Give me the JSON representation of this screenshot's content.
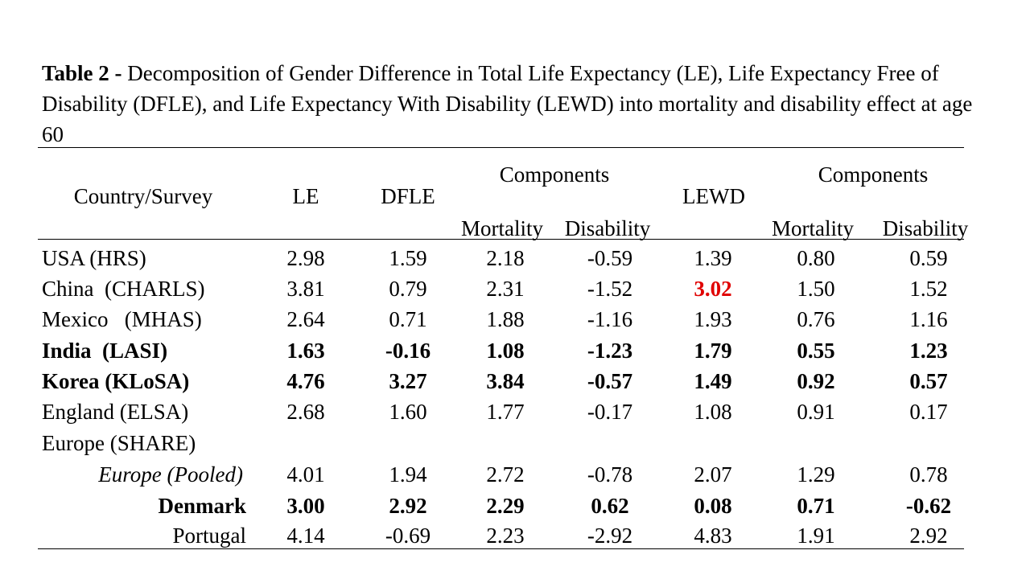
{
  "caption_prefix": "Table 2",
  "caption_dash": " - ",
  "caption_body": "Decomposition of Gender Difference in Total Life Expectancy (LE), Life Expectancy Free of Disability (DFLE), and Life Expectancy With Disability (LEWD) into mortality and disability effect at age 60",
  "headers": {
    "country": "Country/Survey",
    "le": "LE",
    "dfle": "DFLE",
    "components1": "Components",
    "lewd": "LEWD",
    "components2": "Components",
    "mortality1": "Mortality",
    "disability1": "Disability",
    "mortality2": "Mortality",
    "disability2": "Disability"
  },
  "rows": [
    {
      "label": "USA (HRS)",
      "le": "2.98",
      "dfle": "1.59",
      "m1": "2.18",
      "d1": "-0.59",
      "lewd": "1.39",
      "m2": "0.80",
      "d2": "0.59"
    },
    {
      "label": "China  (CHARLS)",
      "le": "3.81",
      "dfle": "0.79",
      "m1": "2.31",
      "d1": "-1.52",
      "lewd": "3.02",
      "m2": "1.50",
      "d2": "1.52"
    },
    {
      "label": "Mexico   (MHAS)",
      "le": "2.64",
      "dfle": "0.71",
      "m1": "1.88",
      "d1": "-1.16",
      "lewd": "1.93",
      "m2": "0.76",
      "d2": "1.16"
    },
    {
      "label": "India  (LASI)",
      "le": "1.63",
      "dfle": "-0.16",
      "m1": "1.08",
      "d1": "-1.23",
      "lewd": "1.79",
      "m2": "0.55",
      "d2": "1.23"
    },
    {
      "label": "Korea (KLoSA)",
      "le": "4.76",
      "dfle": "3.27",
      "m1": "3.84",
      "d1": "-0.57",
      "lewd": "1.49",
      "m2": "0.92",
      "d2": "0.57"
    },
    {
      "label": "England (ELSA)",
      "le": "2.68",
      "dfle": "1.60",
      "m1": "1.77",
      "d1": "-0.17",
      "lewd": "1.08",
      "m2": "0.91",
      "d2": "0.17"
    },
    {
      "label": "Europe (SHARE)",
      "le": "",
      "dfle": "",
      "m1": "",
      "d1": "",
      "lewd": "",
      "m2": "",
      "d2": ""
    },
    {
      "label": "Europe (Pooled)",
      "le": "4.01",
      "dfle": "1.94",
      "m1": "2.72",
      "d1": "-0.78",
      "lewd": "2.07",
      "m2": "1.29",
      "d2": "0.78"
    },
    {
      "label": "Denmark",
      "le": "3.00",
      "dfle": "2.92",
      "m1": "2.29",
      "d1": "0.62",
      "lewd": "0.08",
      "m2": "0.71",
      "d2": "-0.62"
    },
    {
      "label": "Portugal",
      "le": "4.14",
      "dfle": "-0.69",
      "m1": "2.23",
      "d1": "-2.92",
      "lewd": "4.83",
      "m2": "1.91",
      "d2": "2.92"
    }
  ],
  "colors": {
    "highlight": "#e00000",
    "text": "#000000"
  }
}
